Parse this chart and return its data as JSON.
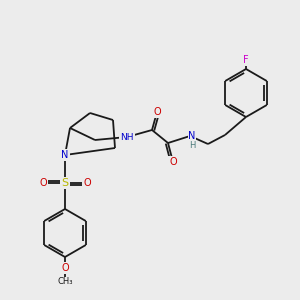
{
  "background_color": "#ececec",
  "bond_color": "#1a1a1a",
  "atom_colors": {
    "N": "#0000cc",
    "O": "#cc0000",
    "S": "#b8b800",
    "F": "#cc00cc",
    "H": "#4a7a7a",
    "C": "#1a1a1a"
  },
  "figsize": [
    3.0,
    3.0
  ],
  "dpi": 100
}
